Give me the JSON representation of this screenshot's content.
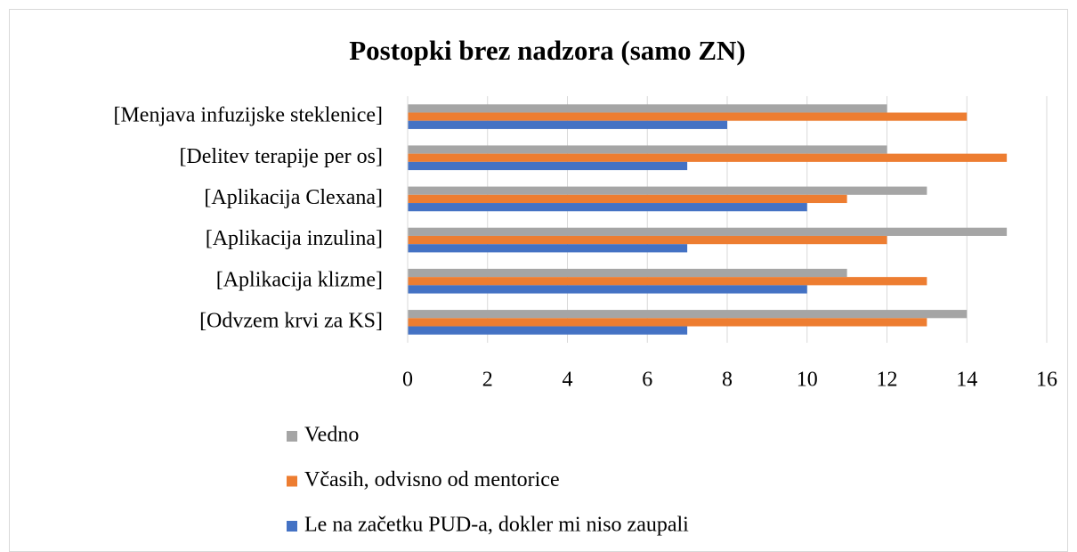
{
  "chart_data": {
    "type": "hbar",
    "title": "Postopki brez nadzora (samo ZN)",
    "categories": [
      "[Menjava infuzijske steklenice]",
      "[Delitev terapije per os]",
      "[Aplikacija Clexana]",
      "[Aplikacija inzulina]",
      "[Aplikacija klizme]",
      "[Odvzem krvi za KS]"
    ],
    "series": [
      {
        "name": "Vedno",
        "color": "#a5a5a5",
        "values": [
          12,
          12,
          13,
          15,
          11,
          14
        ]
      },
      {
        "name": "Včasih, odvisno od mentorice",
        "color": "#ed7d31",
        "values": [
          14,
          15,
          11,
          12,
          13,
          13
        ]
      },
      {
        "name": "Le na začetku PUD-a, dokler mi niso zaupali",
        "color": "#4472c4",
        "values": [
          8,
          7,
          10,
          7,
          10,
          7
        ]
      }
    ],
    "xlim": [
      0,
      16
    ],
    "xticks": [
      0,
      2,
      4,
      6,
      8,
      10,
      12,
      14,
      16
    ],
    "grid": true
  }
}
